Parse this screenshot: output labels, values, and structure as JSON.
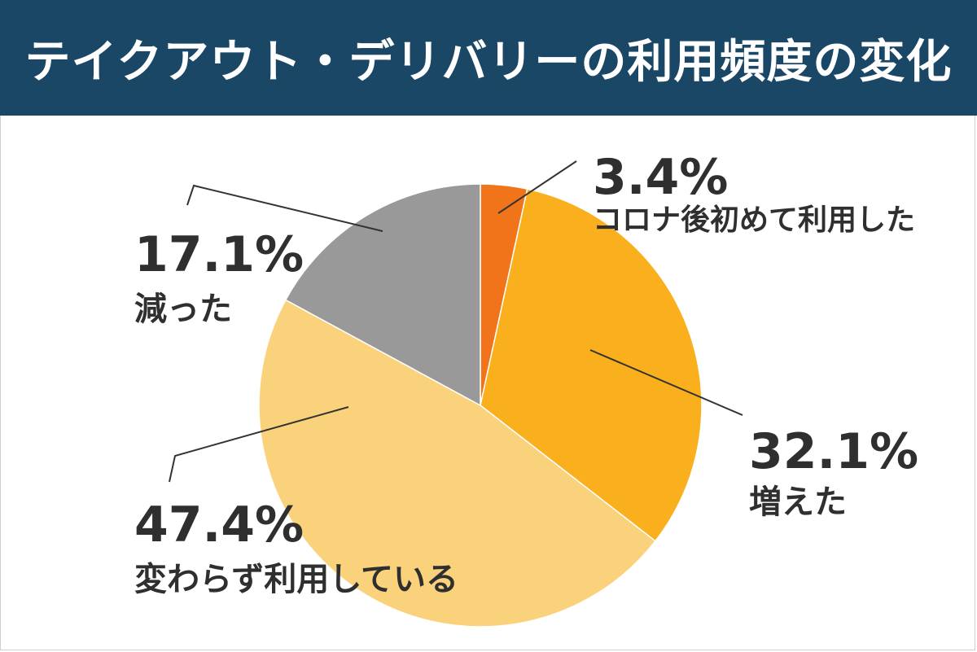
{
  "title": "テイクアウト・デリバリーの利用頻度の変化",
  "colors": {
    "header_bg": "#1b4767",
    "header_text": "#ffffff",
    "label_text": "#2f2f2f"
  },
  "chart_data": {
    "type": "pie",
    "title": "テイクアウト・デリバリーの利用頻度の変化",
    "start": "12 o'clock",
    "direction": "clockwise",
    "slices": [
      {
        "label": "コロナ後初めて利用した",
        "value": 3.4,
        "value_label": "3.4%",
        "color": "#f2741a"
      },
      {
        "label": "増えた",
        "value": 32.1,
        "value_label": "32.1%",
        "color": "#f9b01c"
      },
      {
        "label": "変わらず利用している",
        "value": 47.4,
        "value_label": "47.4%",
        "color": "#fbd27c"
      },
      {
        "label": "減った",
        "value": 17.1,
        "value_label": "17.1%",
        "color": "#999999"
      }
    ]
  }
}
